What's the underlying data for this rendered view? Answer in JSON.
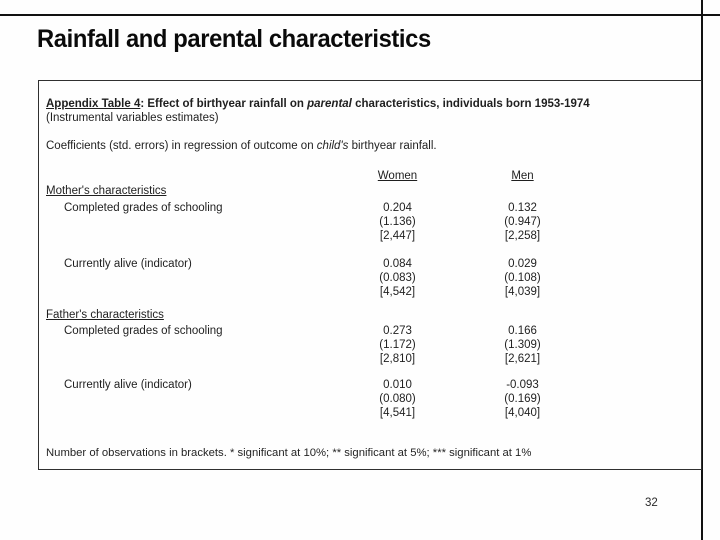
{
  "slide": {
    "title": "Rainfall and parental characteristics",
    "page_number": "32"
  },
  "table": {
    "heading": {
      "label": "Appendix Table 4",
      "title_pre": ": Effect of birthyear rainfall on ",
      "title_emph": "parental",
      "title_post": " characteristics, individuals born 1953-1974",
      "subtitle": "(Instrumental variables estimates)",
      "note_pre": "Coefficients (std. errors) in regression of outcome on ",
      "note_emph": "child's",
      "note_post": " birthyear rainfall."
    },
    "columns": {
      "women": "Women",
      "men": "Men"
    },
    "sections": [
      {
        "label": "Mother's characteristics",
        "rows": [
          {
            "label": "Completed grades of schooling",
            "women": {
              "coef": "0.204",
              "se": "(1.136)",
              "n": "[2,447]"
            },
            "men": {
              "coef": "0.132",
              "se": "(0.947)",
              "n": "[2,258]"
            }
          },
          {
            "label": "Currently alive (indicator)",
            "women": {
              "coef": "0.084",
              "se": "(0.083)",
              "n": "[4,542]"
            },
            "men": {
              "coef": "0.029",
              "se": "(0.108)",
              "n": "[4,039]"
            }
          }
        ]
      },
      {
        "label": "Father's characteristics",
        "rows": [
          {
            "label": "Completed grades of schooling",
            "women": {
              "coef": "0.273",
              "se": "(1.172)",
              "n": "[2,810]"
            },
            "men": {
              "coef": "0.166",
              "se": "(1.309)",
              "n": "[2,621]"
            }
          },
          {
            "label": "Currently alive (indicator)",
            "women": {
              "coef": "0.010",
              "se": "(0.080)",
              "n": "[4,541]"
            },
            "men": {
              "coef": "-0.093",
              "se": "(0.169)",
              "n": "[4,040]"
            }
          }
        ]
      }
    ],
    "footnote": "Number of observations in brackets. * significant at 10%; ** significant at 5%; *** significant at 1%"
  }
}
